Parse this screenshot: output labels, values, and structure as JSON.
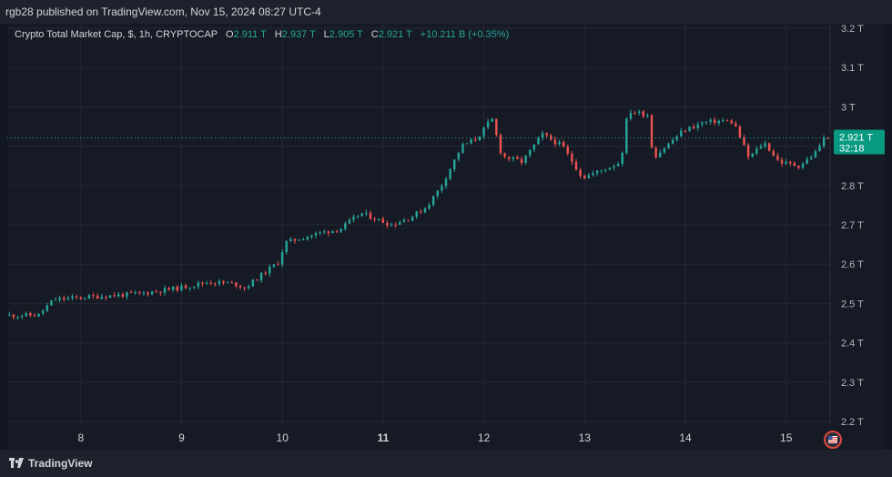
{
  "header": {
    "published_by": "rgb28 published on TradingView.com, Nov 15, 2024 08:27 UTC-4"
  },
  "legend": {
    "symbol": "Crypto Total Market Cap, $, 1h, CRYPTOCAP",
    "open_label": "O",
    "open": "2.911 T",
    "high_label": "H",
    "high": "2.937 T",
    "low_label": "L",
    "low": "2.905 T",
    "close_label": "C",
    "close": "2.921 T",
    "change": "+10.211 B (+0.35%)"
  },
  "price_tag": {
    "price": "2.921 T",
    "countdown": "32:18"
  },
  "footer": {
    "brand": "TradingView"
  },
  "colors": {
    "up": "#26a69a",
    "down": "#ef5350",
    "grid": "#242836",
    "bg": "#161a25"
  },
  "chart_data": {
    "type": "candlestick",
    "unit": "T",
    "timeframe": "1h",
    "ylim": [
      2.2,
      3.2
    ],
    "y_ticks": [
      "3.2 T",
      "3.1 T",
      "3 T",
      "2.9 T",
      "2.8 T",
      "2.7 T",
      "2.6 T",
      "2.5 T",
      "2.4 T",
      "2.3 T",
      "2.2 T"
    ],
    "y_tick_values": [
      3.2,
      3.1,
      3.0,
      2.9,
      2.8,
      2.7,
      2.6,
      2.5,
      2.4,
      2.3,
      2.2
    ],
    "x_ticks": [
      "8",
      "9",
      "10",
      "11",
      "12",
      "13",
      "14",
      "15"
    ],
    "x_tick_bold": [
      false,
      false,
      false,
      true,
      false,
      false,
      false,
      false
    ],
    "x_range_days": [
      7.27,
      15.4
    ],
    "last_price": 2.921,
    "path_points": [
      [
        7.27,
        2.47
      ],
      [
        7.6,
        2.47
      ],
      [
        7.75,
        2.51
      ],
      [
        8.0,
        2.515
      ],
      [
        8.3,
        2.52
      ],
      [
        8.6,
        2.525
      ],
      [
        9.0,
        2.54
      ],
      [
        9.3,
        2.555
      ],
      [
        9.55,
        2.55
      ],
      [
        9.65,
        2.54
      ],
      [
        9.85,
        2.58
      ],
      [
        9.98,
        2.605
      ],
      [
        10.05,
        2.655
      ],
      [
        10.4,
        2.68
      ],
      [
        10.6,
        2.69
      ],
      [
        10.8,
        2.73
      ],
      [
        11.1,
        2.7
      ],
      [
        11.3,
        2.72
      ],
      [
        11.45,
        2.745
      ],
      [
        11.6,
        2.8
      ],
      [
        11.8,
        2.9
      ],
      [
        11.95,
        2.92
      ],
      [
        12.1,
        2.97
      ],
      [
        12.2,
        2.875
      ],
      [
        12.4,
        2.86
      ],
      [
        12.6,
        2.93
      ],
      [
        12.8,
        2.9
      ],
      [
        13.0,
        2.82
      ],
      [
        13.2,
        2.84
      ],
      [
        13.38,
        2.86
      ],
      [
        13.45,
        2.99
      ],
      [
        13.65,
        2.98
      ],
      [
        13.7,
        2.87
      ],
      [
        14.0,
        2.94
      ],
      [
        14.2,
        2.96
      ],
      [
        14.4,
        2.965
      ],
      [
        14.5,
        2.96
      ],
      [
        14.65,
        2.87
      ],
      [
        14.8,
        2.91
      ],
      [
        14.95,
        2.86
      ],
      [
        15.15,
        2.85
      ],
      [
        15.3,
        2.88
      ],
      [
        15.4,
        2.921
      ]
    ]
  }
}
